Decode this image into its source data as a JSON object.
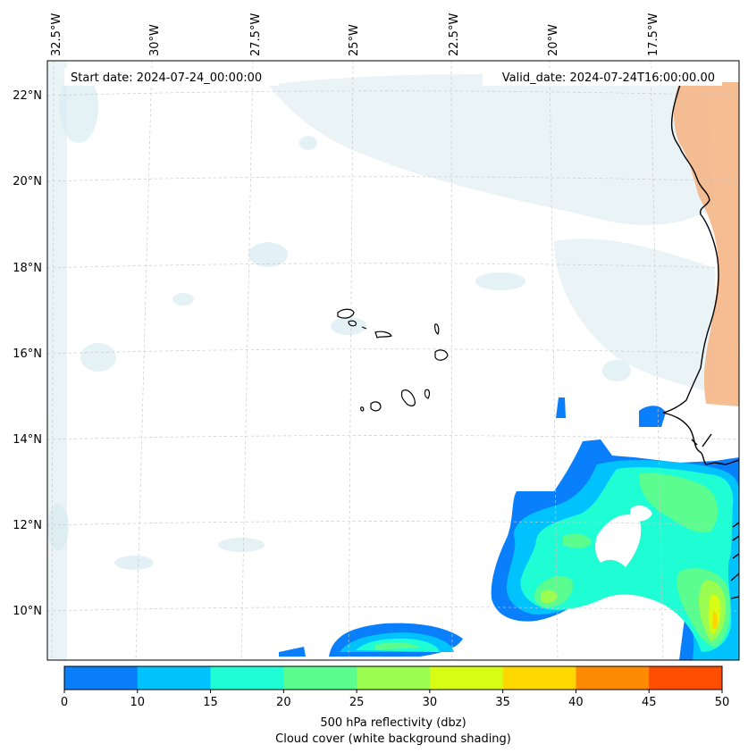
{
  "map": {
    "start_label": "Start date: 2024-07-24_00:00:00",
    "valid_label": "Valid_date: 2024-07-24T16:00:00.00",
    "lon_labels": [
      "32.5°W",
      "30°W",
      "27.5°W",
      "25°W",
      "22.5°W",
      "20°W",
      "17.5°W"
    ],
    "lat_labels": [
      "22°N",
      "20°N",
      "18°N",
      "16°N",
      "14°N",
      "12°N",
      "10°N"
    ]
  },
  "colorbar": {
    "ticks": [
      "0",
      "10",
      "15",
      "20",
      "25",
      "30",
      "35",
      "40",
      "45",
      "50"
    ],
    "colors": [
      "#0a7ffb",
      "#00c3fe",
      "#1efdd3",
      "#5cfd8f",
      "#9bfd4f",
      "#d8fd14",
      "#fdd800",
      "#fd8a00",
      "#fd4e00"
    ],
    "label_line1": "500 hPa reflectivity (dbz)",
    "label_line2": "Cloud cover (white background shading)"
  }
}
